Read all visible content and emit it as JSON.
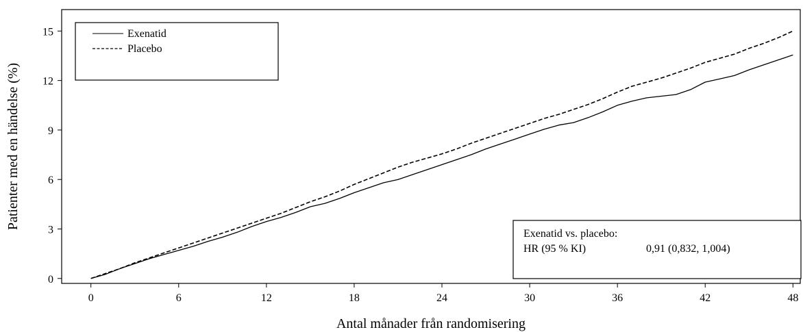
{
  "chart_data": {
    "type": "line",
    "title": "",
    "xlabel": "Antal månader från randomisering",
    "ylabel": "Patienter med en händelse (%)",
    "xlim": [
      -2,
      48.5
    ],
    "ylim": [
      -0.3,
      16.3
    ],
    "xticks": [
      0,
      6,
      12,
      18,
      24,
      30,
      36,
      42,
      48
    ],
    "yticks": [
      0,
      3,
      6,
      9,
      12,
      15
    ],
    "legend": {
      "position": "top-left",
      "entries": [
        "Exenatid",
        "Placebo"
      ]
    },
    "annotation": {
      "position": "bottom-right",
      "line1": "Exenatid vs. placebo:",
      "label": "HR (95 % KI)",
      "value": "0,91 (0,832, 1,004)"
    },
    "series": [
      {
        "name": "Exenatid",
        "style": "solid",
        "color": "#000000",
        "x": [
          0,
          1,
          2,
          3,
          4,
          5,
          6,
          7,
          8,
          9,
          10,
          11,
          12,
          13,
          14,
          15,
          16,
          17,
          18,
          19,
          20,
          21,
          22,
          23,
          24,
          25,
          26,
          27,
          28,
          29,
          30,
          31,
          32,
          33,
          34,
          35,
          36,
          37,
          38,
          39,
          40,
          41,
          42,
          43,
          44,
          45,
          46,
          47,
          48
        ],
        "values": [
          0,
          0.25,
          0.6,
          0.9,
          1.2,
          1.45,
          1.7,
          1.95,
          2.25,
          2.5,
          2.8,
          3.15,
          3.45,
          3.7,
          4.0,
          4.35,
          4.55,
          4.85,
          5.2,
          5.5,
          5.8,
          6.0,
          6.3,
          6.6,
          6.9,
          7.2,
          7.5,
          7.85,
          8.15,
          8.45,
          8.75,
          9.05,
          9.3,
          9.45,
          9.75,
          10.1,
          10.5,
          10.75,
          10.95,
          11.05,
          11.15,
          11.45,
          11.9,
          12.1,
          12.3,
          12.65,
          12.95,
          13.25,
          13.55
        ]
      },
      {
        "name": "Placebo",
        "style": "dashed",
        "color": "#000000",
        "x": [
          0,
          1,
          2,
          3,
          4,
          5,
          6,
          7,
          8,
          9,
          10,
          11,
          12,
          13,
          14,
          15,
          16,
          17,
          18,
          19,
          20,
          21,
          22,
          23,
          24,
          25,
          26,
          27,
          28,
          29,
          30,
          31,
          32,
          33,
          34,
          35,
          36,
          37,
          38,
          39,
          40,
          41,
          42,
          43,
          44,
          45,
          46,
          47,
          48
        ],
        "values": [
          0,
          0.3,
          0.6,
          0.95,
          1.25,
          1.55,
          1.85,
          2.15,
          2.45,
          2.75,
          3.05,
          3.35,
          3.65,
          3.95,
          4.3,
          4.65,
          4.95,
          5.3,
          5.7,
          6.05,
          6.4,
          6.75,
          7.05,
          7.3,
          7.55,
          7.85,
          8.2,
          8.5,
          8.8,
          9.1,
          9.4,
          9.7,
          9.95,
          10.25,
          10.55,
          10.9,
          11.3,
          11.65,
          11.9,
          12.15,
          12.45,
          12.75,
          13.1,
          13.35,
          13.6,
          13.95,
          14.25,
          14.6,
          15.0
        ]
      }
    ]
  }
}
